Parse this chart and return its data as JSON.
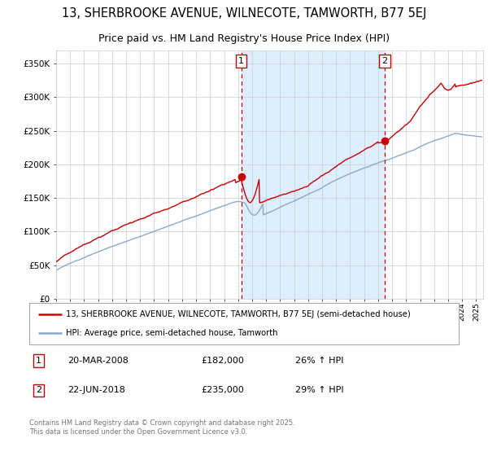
{
  "title": "13, SHERBROOKE AVENUE, WILNECOTE, TAMWORTH, B77 5EJ",
  "subtitle": "Price paid vs. HM Land Registry's House Price Index (HPI)",
  "ylim": [
    0,
    370000
  ],
  "xlim_start": 1995.0,
  "xlim_end": 2025.5,
  "marker1_date": 2008.22,
  "marker2_date": 2018.47,
  "marker1_price": 182000,
  "marker2_price": 235000,
  "legend_line1": "13, SHERBROOKE AVENUE, WILNECOTE, TAMWORTH, B77 5EJ (semi-detached house)",
  "legend_line2": "HPI: Average price, semi-detached house, Tamworth",
  "footer": "Contains HM Land Registry data © Crown copyright and database right 2025.\nThis data is licensed under the Open Government Licence v3.0.",
  "line_color_red": "#cc0000",
  "line_color_blue": "#88aacc",
  "background_color": "#ffffff",
  "shade_color": "#ddeeff",
  "grid_color": "#cccccc"
}
